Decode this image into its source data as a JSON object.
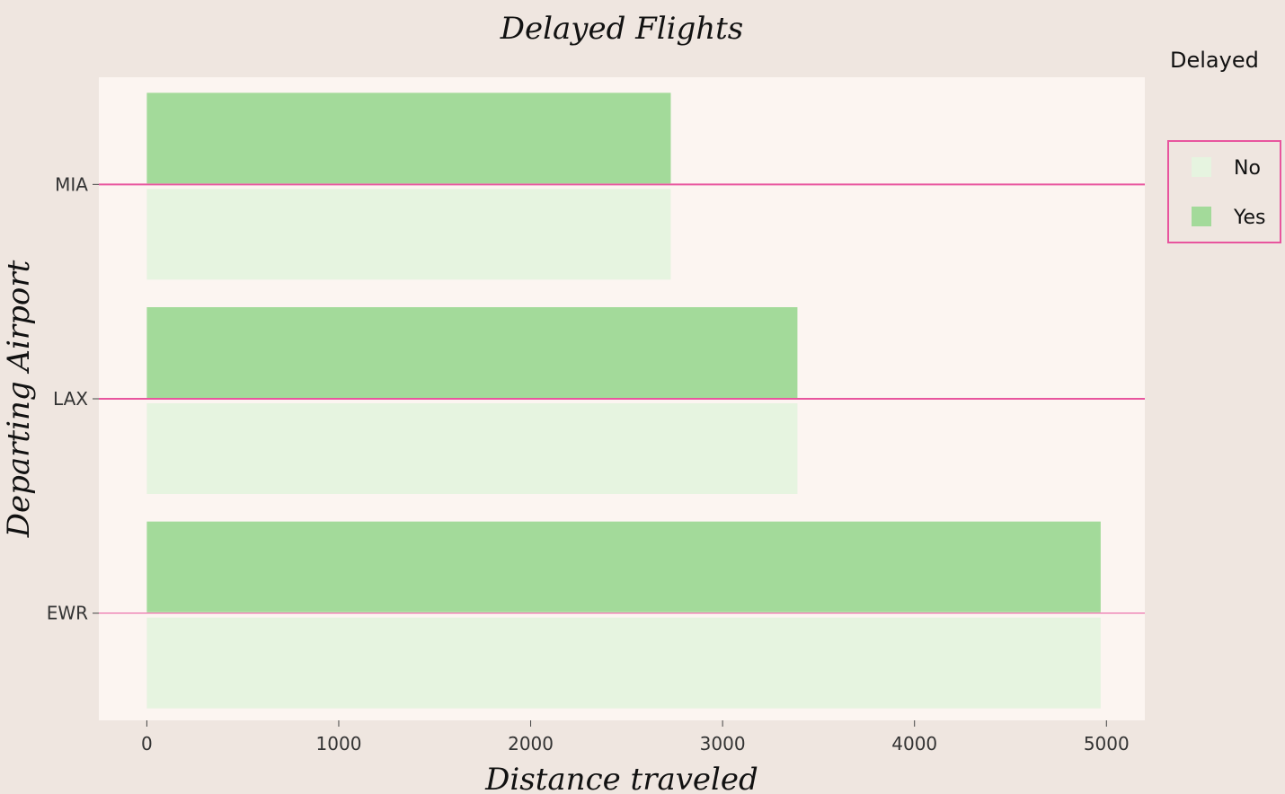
{
  "colors": {
    "page_background": "#efe6e0",
    "plot_background": "#fcf5f1",
    "no": "#e6f4e0",
    "yes": "#a3da9a",
    "gridline": "#e8559e",
    "legend_border": "#e8559e"
  },
  "chart_data": {
    "type": "bar",
    "orientation": "horizontal",
    "title": "Delayed Flights",
    "xlabel": "Distance traveled",
    "ylabel": "Departing Airport",
    "categories": [
      "EWR",
      "LAX",
      "MIA"
    ],
    "xlim": [
      -250,
      5200
    ],
    "xticks": [
      0,
      1000,
      2000,
      3000,
      4000,
      5000
    ],
    "grid": "y-category-lines",
    "legend": {
      "title": "Delayed",
      "placement": "right",
      "entries": [
        "No",
        "Yes"
      ]
    },
    "series": [
      {
        "name": "No",
        "values": [
          4970,
          3390,
          2730
        ]
      },
      {
        "name": "Yes",
        "values": [
          4970,
          3390,
          2730
        ]
      }
    ]
  }
}
